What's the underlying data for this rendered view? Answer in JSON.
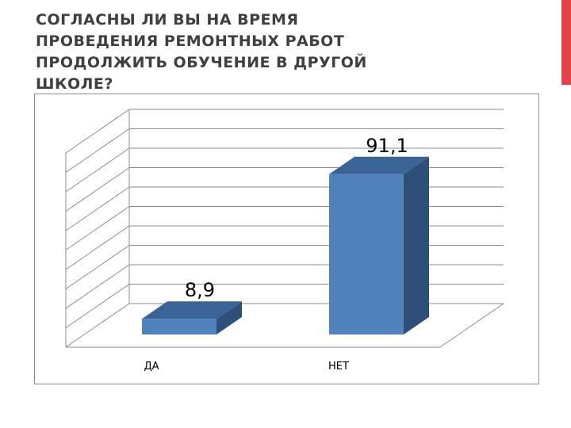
{
  "title": "СОГЛАСНЫ ЛИ ВЫ НА ВРЕМЯ ПРОВЕДЕНИЯ РЕМОНТНЫХ РАБОТ ПРОДОЛЖИТЬ ОБУЧЕНИЕ В ДРУГОЙ ШКОЛЕ?",
  "colors": {
    "accent": "#e2434b",
    "bar_front": "#4f81bd",
    "bar_side": "#2f4f78",
    "bar_top": "#3a6496",
    "gridline": "#8c8c8c",
    "title": "#3f3f3f"
  },
  "chart_data": {
    "type": "bar",
    "style": "3d-column",
    "categories": [
      "ДА",
      "НЕТ"
    ],
    "values": [
      8.9,
      91.1
    ],
    "data_labels": [
      "8,9",
      "91,1"
    ],
    "ylim": [
      0,
      100
    ],
    "grid": true,
    "legend": "none",
    "title": "",
    "xlabel": "",
    "ylabel": ""
  }
}
